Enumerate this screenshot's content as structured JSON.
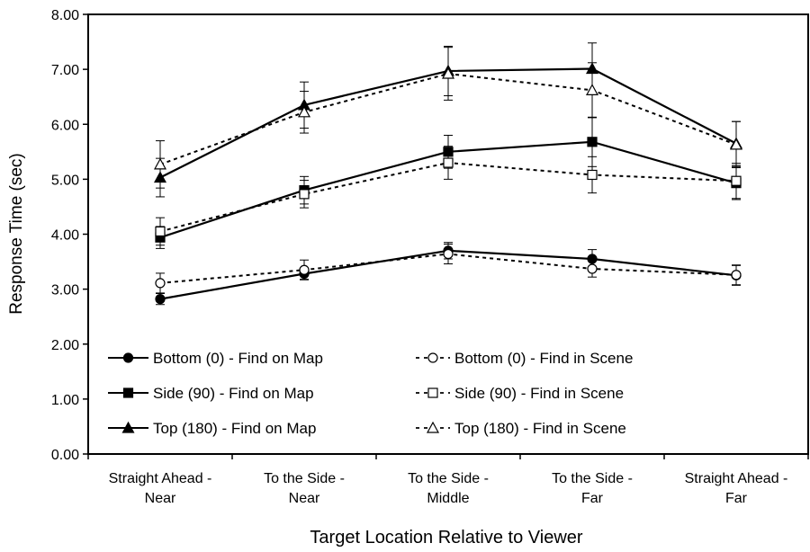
{
  "chart_data": {
    "type": "line",
    "title": "",
    "xlabel": "Target Location Relative to Viewer",
    "ylabel": "Response Time (sec)",
    "ylim": [
      0,
      8
    ],
    "y_ticks": [
      "0.00",
      "1.00",
      "2.00",
      "3.00",
      "4.00",
      "5.00",
      "6.00",
      "7.00",
      "8.00"
    ],
    "categories": [
      [
        "Straight Ahead -",
        "Near"
      ],
      [
        "To the Side -",
        "Near"
      ],
      [
        "To the Side -",
        "Middle"
      ],
      [
        "To the Side -",
        "Far"
      ],
      [
        "Straight Ahead -",
        "Far"
      ]
    ],
    "grid": false,
    "legend_position": "lower-center inside plot",
    "series": [
      {
        "name": "Bottom (0) - Find on Map",
        "marker": "circle",
        "filled": true,
        "dashed": false,
        "values": [
          2.82,
          3.28,
          3.7,
          3.55,
          3.25
        ],
        "errors": [
          0.1,
          0.1,
          0.15,
          0.17,
          0.18
        ]
      },
      {
        "name": "Side (90) - Find on Map",
        "marker": "square",
        "filled": true,
        "dashed": false,
        "values": [
          3.94,
          4.8,
          5.5,
          5.68,
          4.93
        ],
        "errors": [
          0.2,
          0.25,
          0.3,
          0.45,
          0.3
        ]
      },
      {
        "name": "Top (180) - Find on Map",
        "marker": "triangle",
        "filled": true,
        "dashed": false,
        "values": [
          5.03,
          6.35,
          6.97,
          7.01,
          5.65
        ],
        "errors": [
          0.35,
          0.42,
          0.45,
          0.47,
          0.4
        ]
      },
      {
        "name": "Bottom (0) - Find in Scene",
        "marker": "circle",
        "filled": false,
        "dashed": true,
        "values": [
          3.11,
          3.35,
          3.64,
          3.37,
          3.26
        ],
        "errors": [
          0.18,
          0.18,
          0.18,
          0.15,
          0.18
        ]
      },
      {
        "name": "Side (90) - Find in Scene",
        "marker": "square",
        "filled": false,
        "dashed": true,
        "values": [
          4.05,
          4.73,
          5.3,
          5.08,
          4.97
        ],
        "errors": [
          0.25,
          0.25,
          0.3,
          0.33,
          0.32
        ]
      },
      {
        "name": "Top (180) - Find in Scene",
        "marker": "triangle",
        "filled": false,
        "dashed": true,
        "values": [
          5.27,
          6.22,
          6.92,
          6.62,
          5.63
        ],
        "errors": [
          0.43,
          0.38,
          0.48,
          0.5,
          0.42
        ]
      }
    ]
  }
}
